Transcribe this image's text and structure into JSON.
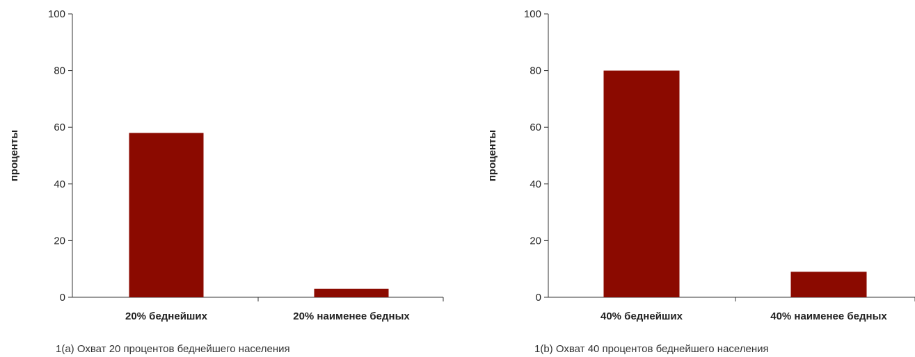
{
  "chart_data": [
    {
      "type": "bar",
      "categories": [
        "20% беднейших",
        "20% наименее бедных"
      ],
      "values": [
        58,
        3
      ],
      "ylabel": "проценты",
      "ylim": [
        0,
        100
      ],
      "yticks": [
        0,
        20,
        40,
        60,
        80,
        100
      ],
      "caption": "1(a) Охват 20 процентов беднейшего населения",
      "bar_color": "#8b0a00",
      "grid": false
    },
    {
      "type": "bar",
      "categories": [
        "40% беднейших",
        "40% наименее бедных"
      ],
      "values": [
        80,
        9
      ],
      "ylabel": "проценты",
      "ylim": [
        0,
        100
      ],
      "yticks": [
        0,
        20,
        40,
        60,
        80,
        100
      ],
      "caption": "1(b) Охват 40 процентов беднейшего населения",
      "bar_color": "#8b0a00",
      "grid": false
    }
  ]
}
